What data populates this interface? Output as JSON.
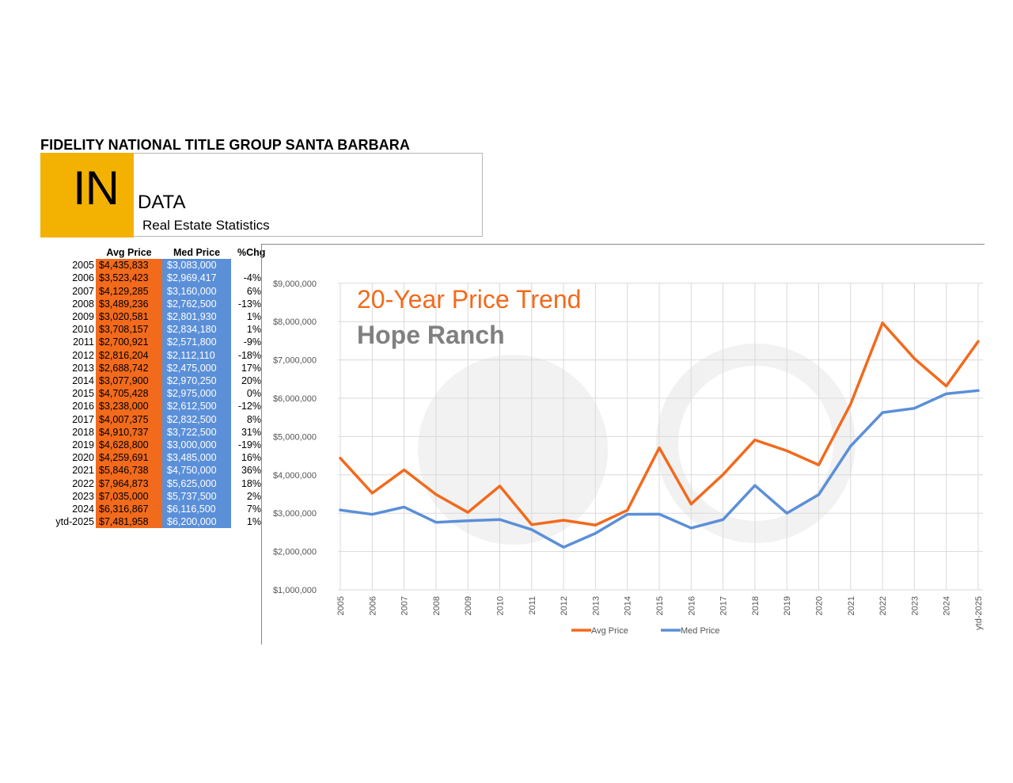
{
  "header": {
    "org": "FIDELITY NATIONAL TITLE GROUP SANTA BARBARA",
    "logo": "IN",
    "data_word": "DATA",
    "subtitle": "Real Estate Statistics"
  },
  "colors": {
    "avg": "#f26a1c",
    "med": "#5b8fd8",
    "logo_bg": "#f3b202",
    "title2": "#808080"
  },
  "table": {
    "headers": [
      "",
      "Avg Price",
      "Med Price",
      "%Chg"
    ],
    "rows": [
      {
        "year": "2005",
        "avg": "$4,435,833",
        "med": "$3,083,000",
        "chg": ""
      },
      {
        "year": "2006",
        "avg": "$3,523,423",
        "med": "$2,969,417",
        "chg": "-4%"
      },
      {
        "year": "2007",
        "avg": "$4,129,285",
        "med": "$3,160,000",
        "chg": "6%"
      },
      {
        "year": "2008",
        "avg": "$3,489,236",
        "med": "$2,762,500",
        "chg": "-13%"
      },
      {
        "year": "2009",
        "avg": "$3,020,581",
        "med": "$2,801,930",
        "chg": "1%"
      },
      {
        "year": "2010",
        "avg": "$3,708,157",
        "med": "$2,834,180",
        "chg": "1%"
      },
      {
        "year": "2011",
        "avg": "$2,700,921",
        "med": "$2,571,800",
        "chg": "-9%"
      },
      {
        "year": "2012",
        "avg": "$2,816,204",
        "med": "$2,112,110",
        "chg": "-18%"
      },
      {
        "year": "2013",
        "avg": "$2,688,742",
        "med": "$2,475,000",
        "chg": "17%"
      },
      {
        "year": "2014",
        "avg": "$3,077,900",
        "med": "$2,970,250",
        "chg": "20%"
      },
      {
        "year": "2015",
        "avg": "$4,705,428",
        "med": "$2,975,000",
        "chg": "0%"
      },
      {
        "year": "2016",
        "avg": "$3,238,000",
        "med": "$2,612,500",
        "chg": "-12%"
      },
      {
        "year": "2017",
        "avg": "$4,007,375",
        "med": "$2,832,500",
        "chg": "8%"
      },
      {
        "year": "2018",
        "avg": "$4,910,737",
        "med": "$3,722,500",
        "chg": "31%"
      },
      {
        "year": "2019",
        "avg": "$4,628,800",
        "med": "$3,000,000",
        "chg": "-19%"
      },
      {
        "year": "2020",
        "avg": "$4,259,691",
        "med": "$3,485,000",
        "chg": "16%"
      },
      {
        "year": "2021",
        "avg": "$5,846,738",
        "med": "$4,750,000",
        "chg": "36%"
      },
      {
        "year": "2022",
        "avg": "$7,964,873",
        "med": "$5,625,000",
        "chg": "18%"
      },
      {
        "year": "2023",
        "avg": "$7,035,000",
        "med": "$5,737,500",
        "chg": "2%"
      },
      {
        "year": "2024",
        "avg": "$6,316,867",
        "med": "$6,116,500",
        "chg": "7%"
      },
      {
        "year": "ytd-2025",
        "avg": "$7,481,958",
        "med": "$6,200,000",
        "chg": "1%"
      }
    ]
  },
  "chart_data": {
    "type": "line",
    "title": "20-Year Price Trend",
    "subtitle": "Hope Ranch",
    "x": [
      "2005",
      "2006",
      "2007",
      "2008",
      "2009",
      "2010",
      "2011",
      "2012",
      "2013",
      "2014",
      "2015",
      "2016",
      "2017",
      "2018",
      "2019",
      "2020",
      "2021",
      "2022",
      "2023",
      "2024",
      "ytd-2025"
    ],
    "series": [
      {
        "name": "Avg Price",
        "color": "#f26a1c",
        "values": [
          4435833,
          3523423,
          4129285,
          3489236,
          3020581,
          3708157,
          2700921,
          2816204,
          2688742,
          3077900,
          4705428,
          3238000,
          4007375,
          4910737,
          4628800,
          4259691,
          5846738,
          7964873,
          7035000,
          6316867,
          7481958
        ]
      },
      {
        "name": "Med Price",
        "color": "#5b8fd8",
        "values": [
          3083000,
          2969417,
          3160000,
          2762500,
          2801930,
          2834180,
          2571800,
          2112110,
          2475000,
          2970250,
          2975000,
          2612500,
          2832500,
          3722500,
          3000000,
          3485000,
          4750000,
          5625000,
          5737500,
          6116500,
          6200000
        ]
      }
    ],
    "yticks": [
      "$1,000,000",
      "$2,000,000",
      "$3,000,000",
      "$4,000,000",
      "$5,000,000",
      "$6,000,000",
      "$7,000,000",
      "$8,000,000",
      "$9,000,000"
    ],
    "ylim": [
      1000000,
      9000000
    ],
    "grid": true,
    "legend_position": "bottom"
  }
}
